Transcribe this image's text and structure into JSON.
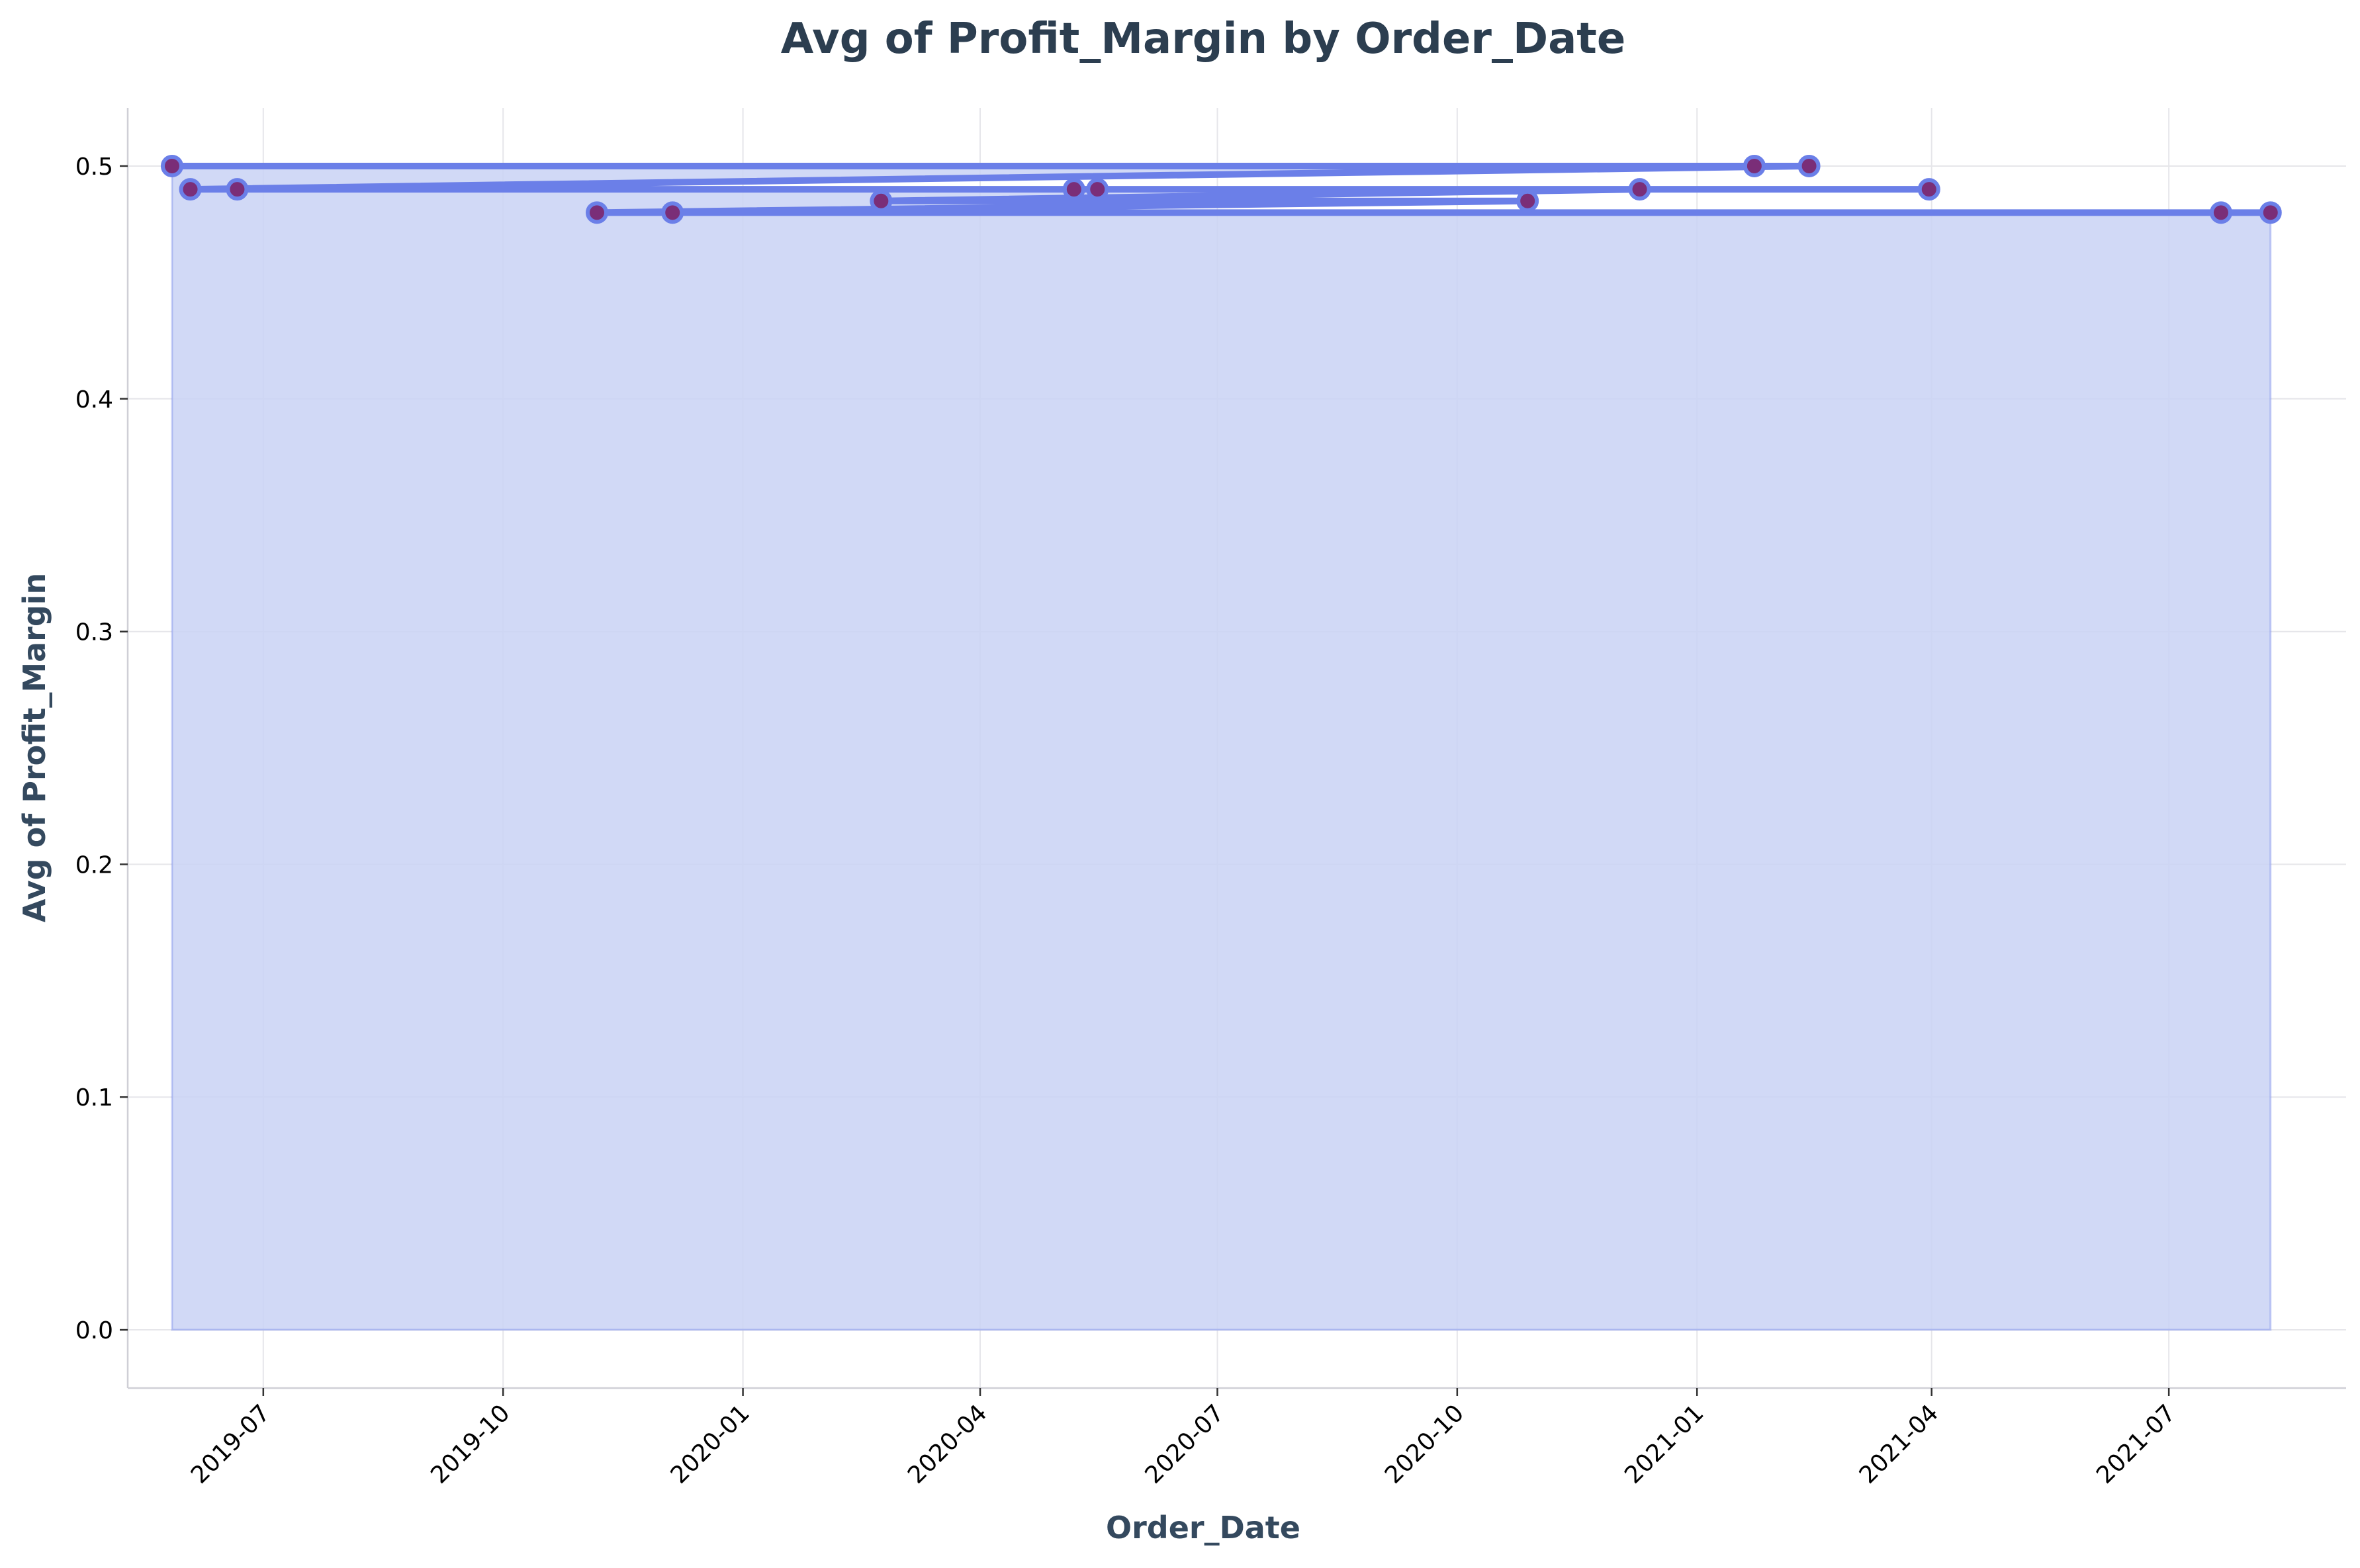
{
  "chart_data": {
    "type": "line",
    "title": "Avg of Profit_Margin by Order_Date",
    "xlabel": "Order_Date",
    "ylabel": "Avg of Profit_Margin",
    "x_ticks": [
      "2019-07",
      "2019-10",
      "2020-01",
      "2020-04",
      "2020-07",
      "2020-10",
      "2021-01",
      "2021-04",
      "2021-07"
    ],
    "y_ticks": [
      "0.0",
      "0.1",
      "0.2",
      "0.3",
      "0.4",
      "0.5"
    ],
    "xlim": [
      "2019-05-10",
      "2021-09-07"
    ],
    "ylim": [
      -0.025,
      0.525
    ],
    "grid": true,
    "series": [
      {
        "color": "#6b7fe8",
        "marker_color": "#7a2e78",
        "fill_color": "#c9d2f4",
        "points": [
          {
            "x": "2019-05-27",
            "y": 0.5
          },
          {
            "x": "2021-01-23",
            "y": 0.5
          },
          {
            "x": "2021-02-13",
            "y": 0.5
          },
          {
            "x": "2019-06-03",
            "y": 0.49
          },
          {
            "x": "2019-06-21",
            "y": 0.49
          },
          {
            "x": "2021-03-31",
            "y": 0.49
          },
          {
            "x": "2020-05-07",
            "y": 0.49
          },
          {
            "x": "2020-05-16",
            "y": 0.49
          },
          {
            "x": "2020-12-10",
            "y": 0.49
          },
          {
            "x": "2020-02-23",
            "y": 0.485
          },
          {
            "x": "2020-10-28",
            "y": 0.485
          },
          {
            "x": "2019-11-06",
            "y": 0.48
          },
          {
            "x": "2019-12-05",
            "y": 0.48
          },
          {
            "x": "2021-07-21",
            "y": 0.48
          },
          {
            "x": "2021-08-09",
            "y": 0.48
          }
        ]
      }
    ]
  }
}
